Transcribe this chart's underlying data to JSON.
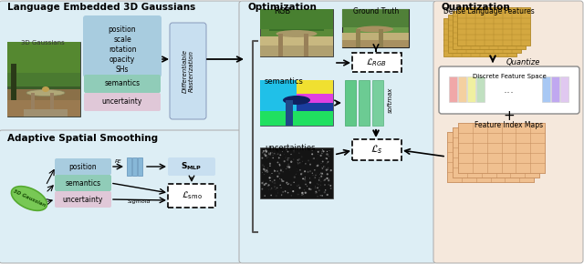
{
  "title_lang": "Language Embedded 3D Gaussians",
  "title_opt": "Optimization",
  "title_quant": "Quantization",
  "title_smooth": "Adaptive Spatial Smoothing",
  "bg_lang": "#ddeef5",
  "bg_opt": "#ddeef5",
  "bg_quant": "#f5e8dc",
  "bg_smooth": "#ddeef5",
  "box_blue": "#a8ccdf",
  "box_green": "#90ccb8",
  "box_pink": "#e0c8d8",
  "box_light_blue": "#c8dff0",
  "diff_rast_bg": "#c8dff0"
}
